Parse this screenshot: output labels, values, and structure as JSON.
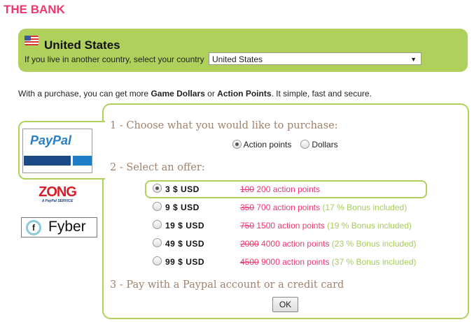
{
  "title": "THE BANK",
  "country": {
    "name": "United States",
    "flag_badge": "US",
    "label": "If you live in another country, select your country",
    "selected": "United States"
  },
  "intro": {
    "pre": "With a purchase, you can get more ",
    "game_dollars": "Game Dollars",
    "or": " or ",
    "action_points": "Action Points",
    "post": ". It simple, fast and secure."
  },
  "providers": {
    "paypal": "PayPal",
    "zong": "ZONG",
    "zong_sub": "A PayPal SERVICE",
    "fyber": "Fyber"
  },
  "step1": {
    "heading": "1 - Choose what you would like to purchase:",
    "options": [
      {
        "label": "Action points",
        "selected": true
      },
      {
        "label": "Dollars",
        "selected": false
      }
    ]
  },
  "step2": {
    "heading": "2 - Select an offer:",
    "offers": [
      {
        "price": "3 $ USD",
        "old": "100",
        "points": "200 action points",
        "bonus": "",
        "selected": true
      },
      {
        "price": "9 $ USD",
        "old": "350",
        "points": "700 action points",
        "bonus": "(17 % Bonus included)",
        "selected": false
      },
      {
        "price": "19 $ USD",
        "old": "750",
        "points": "1500 action points",
        "bonus": "(19 % Bonus included)",
        "selected": false
      },
      {
        "price": "49 $ USD",
        "old": "2000",
        "points": "4000 action points",
        "bonus": "(23 % Bonus included)",
        "selected": false
      },
      {
        "price": "99 $ USD",
        "old": "4500",
        "points": "9000 action points",
        "bonus": "(37 % Bonus included)",
        "selected": false
      }
    ]
  },
  "step3": {
    "heading": "3 - Pay with a Paypal account or a credit card",
    "ok": "OK"
  },
  "colors": {
    "accent_green": "#afd15c",
    "pink": "#f0366d",
    "heading_brown": "#a0826d"
  }
}
